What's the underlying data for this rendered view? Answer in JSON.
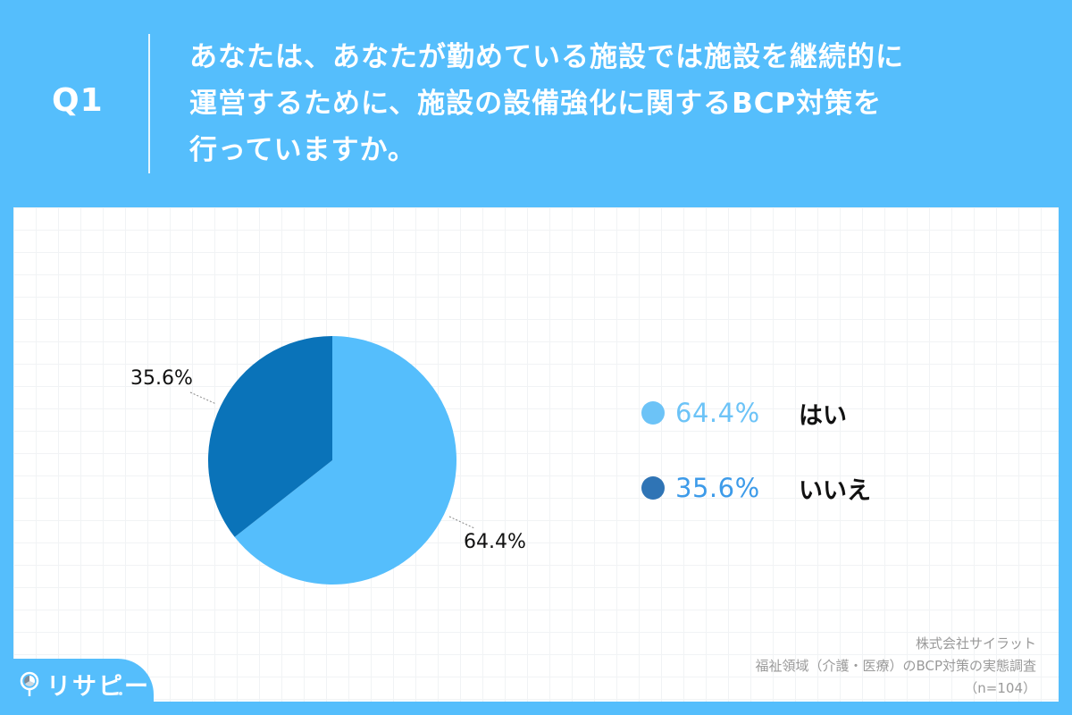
{
  "header": {
    "question_number": "Q1",
    "question_lines": [
      "あなたは、あなたが勤めている施設では施設を継続的に",
      "運営するために、施設の設備強化に関するBCP対策を",
      "行っていますか。"
    ]
  },
  "legend": {
    "items": [
      {
        "percent": "64.4%",
        "label": "はい",
        "dot_color": "#6cc3f7",
        "text_color": "#6cc3f7"
      },
      {
        "percent": "35.6%",
        "label": "いいえ",
        "dot_color": "#2f74b5",
        "text_color": "#3d9be9"
      }
    ]
  },
  "pie_labels": {
    "yes": "64.4%",
    "no": "35.6%"
  },
  "source": {
    "company": "株式会社サイラット",
    "survey": "福祉領域（介護・医療）のBCP対策の実態調査",
    "sample": "（n=104）"
  },
  "logo": {
    "text": "リサピー"
  },
  "colors": {
    "background": "#55befc",
    "slice_yes": "#55befc",
    "slice_no": "#0a73b9"
  },
  "chart_data": {
    "type": "pie",
    "title": "あなたは、あなたが勤めている施設では施設を継続的に運営するために、施設の設備強化に関するBCP対策を行っていますか。",
    "categories": [
      "はい",
      "いいえ"
    ],
    "values": [
      64.4,
      35.6
    ],
    "unit": "%",
    "colors": [
      "#55befc",
      "#0a73b9"
    ],
    "legend_position": "right",
    "annotations": [
      "株式会社サイラット",
      "福祉領域（介護・医療）のBCP対策の実態調査",
      "（n=104）"
    ],
    "n": 104
  }
}
